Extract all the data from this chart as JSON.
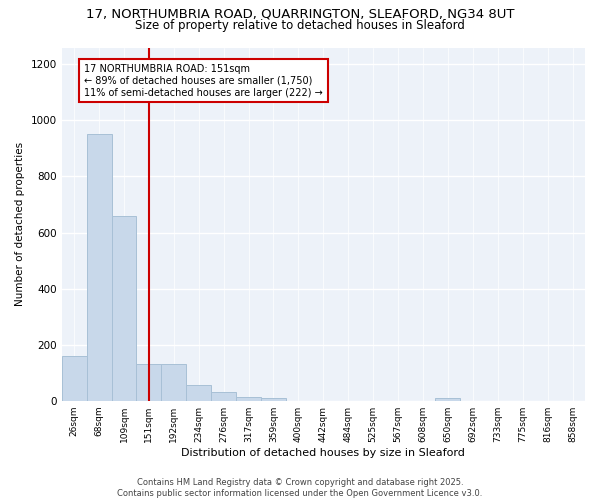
{
  "title_line1": "17, NORTHUMBRIA ROAD, QUARRINGTON, SLEAFORD, NG34 8UT",
  "title_line2": "Size of property relative to detached houses in Sleaford",
  "xlabel": "Distribution of detached houses by size in Sleaford",
  "ylabel": "Number of detached properties",
  "categories": [
    "26sqm",
    "68sqm",
    "109sqm",
    "151sqm",
    "192sqm",
    "234sqm",
    "276sqm",
    "317sqm",
    "359sqm",
    "400sqm",
    "442sqm",
    "484sqm",
    "525sqm",
    "567sqm",
    "608sqm",
    "650sqm",
    "692sqm",
    "733sqm",
    "775sqm",
    "816sqm",
    "858sqm"
  ],
  "values": [
    160,
    950,
    660,
    130,
    130,
    55,
    30,
    15,
    10,
    0,
    0,
    0,
    0,
    0,
    0,
    10,
    0,
    0,
    0,
    0,
    0
  ],
  "bar_color": "#c8d8ea",
  "bar_edgecolor": "#a8c0d6",
  "vline_x_index": 3,
  "vline_color": "#cc0000",
  "annotation_text": "17 NORTHUMBRIA ROAD: 151sqm\n← 89% of detached houses are smaller (1,750)\n11% of semi-detached houses are larger (222) →",
  "annotation_box_color": "#cc0000",
  "ylim": [
    0,
    1260
  ],
  "yticks": [
    0,
    200,
    400,
    600,
    800,
    1000,
    1200
  ],
  "background_color": "#ffffff",
  "plot_bg_color": "#edf2f9",
  "footer": "Contains HM Land Registry data © Crown copyright and database right 2025.\nContains public sector information licensed under the Open Government Licence v3.0.",
  "title_fontsize": 9.5,
  "subtitle_fontsize": 8.5,
  "bar_font_size": 7,
  "ylabel_fontsize": 7.5,
  "xlabel_fontsize": 8,
  "ytick_fontsize": 7.5,
  "xtick_fontsize": 6.5,
  "footer_fontsize": 6,
  "annotation_fontsize": 7
}
